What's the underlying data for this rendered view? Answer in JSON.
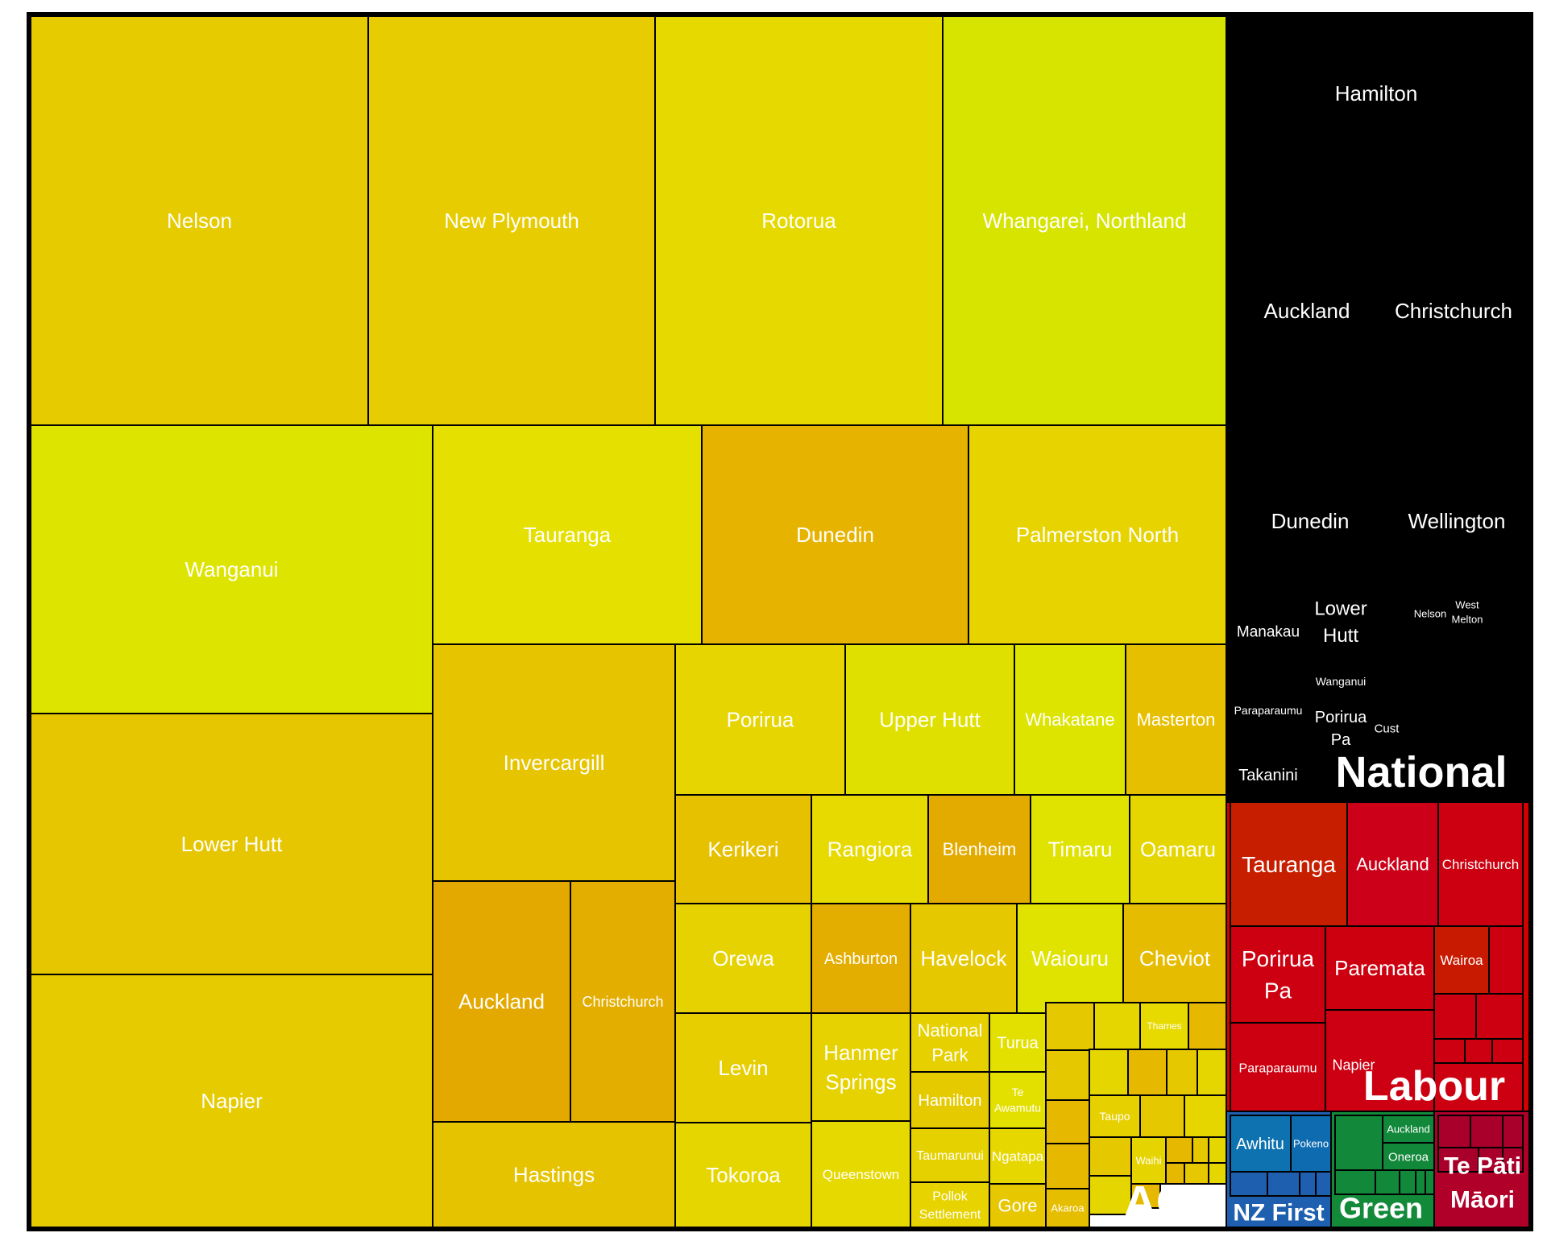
{
  "chart_data": {
    "type": "treemap",
    "groups": [
      {
        "name": "ACT",
        "color": "#f0d400",
        "items": [
          {
            "name": "Nelson",
            "color": "#e6cb00"
          },
          {
            "name": "New Plymouth",
            "color": "#e6cc00"
          },
          {
            "name": "Rotorua",
            "color": "#e6d900"
          },
          {
            "name": "Whangarei, Northland",
            "color": "#d6e400"
          },
          {
            "name": "Wanganui",
            "color": "#dde400"
          },
          {
            "name": "Lower Hutt",
            "color": "#e6c600"
          },
          {
            "name": "Napier",
            "color": "#e6cb00"
          },
          {
            "name": "Tauranga",
            "color": "#e6e000"
          },
          {
            "name": "Dunedin",
            "color": "#e6b400"
          },
          {
            "name": "Palmerston North",
            "color": "#e6d300"
          },
          {
            "name": "Invercargill",
            "color": "#e6c400"
          },
          {
            "name": "Auckland",
            "color": "#e3a900"
          },
          {
            "name": "Christchurch",
            "color": "#e3ae00"
          },
          {
            "name": "Hastings",
            "color": "#e6c300"
          },
          {
            "name": "Porirua",
            "color": "#e6d500"
          },
          {
            "name": "Upper Hutt",
            "color": "#e0e000"
          },
          {
            "name": "Whakatane",
            "color": "#dce400"
          },
          {
            "name": "Masterton",
            "color": "#e6c000"
          },
          {
            "name": "Kerikeri",
            "color": "#e6c100"
          },
          {
            "name": "Rangiora",
            "color": "#e6da00"
          },
          {
            "name": "Blenheim",
            "color": "#e3ab00"
          },
          {
            "name": "Timaru",
            "color": "#e0e200"
          },
          {
            "name": "Oamaru",
            "color": "#e6d600"
          },
          {
            "name": "Orewa",
            "color": "#e6d200"
          },
          {
            "name": "Ashburton",
            "color": "#e3ae00"
          },
          {
            "name": "Havelock",
            "color": "#e6c800"
          },
          {
            "name": "Waiouru",
            "color": "#e0e300"
          },
          {
            "name": "Cheviot",
            "color": "#e6bc00"
          },
          {
            "name": "Levin",
            "color": "#e6ce00"
          },
          {
            "name": "Hanmer Springs",
            "color": "#e6d200"
          },
          {
            "name": "National Park",
            "color": "#e6d000"
          },
          {
            "name": "Turua",
            "color": "#e3e000"
          },
          {
            "name": "Hamilton",
            "color": "#e6ca00"
          },
          {
            "name": "Te Awamutu",
            "color": "#e3e000"
          },
          {
            "name": "Tokoroa",
            "color": "#e6d600"
          },
          {
            "name": "Queenstown",
            "color": "#e6d900"
          },
          {
            "name": "Taumarunui",
            "color": "#e6d100"
          },
          {
            "name": "Ngatapa",
            "color": "#e6d700"
          },
          {
            "name": "Pollok Settlement",
            "color": "#e6d300"
          },
          {
            "name": "Gore",
            "color": "#e6c700"
          },
          {
            "name": "Akaroa",
            "color": "#e6be00"
          },
          {
            "name": "Thames",
            "color": "#e6da00"
          },
          {
            "name": "Taupo",
            "color": "#e6d000"
          },
          {
            "name": "Waihi",
            "color": "#e6d400"
          }
        ]
      },
      {
        "name": "National",
        "color": "#000000",
        "items": [
          {
            "name": "Hamilton"
          },
          {
            "name": "Auckland"
          },
          {
            "name": "Christchurch"
          },
          {
            "name": "Dunedin"
          },
          {
            "name": "Wellington"
          },
          {
            "name": "Manakau"
          },
          {
            "name": "Lower Hutt"
          },
          {
            "name": "Nelson"
          },
          {
            "name": "West Melton"
          },
          {
            "name": "Wanganui"
          },
          {
            "name": "Paraparaumu"
          },
          {
            "name": "Porirua Pa"
          },
          {
            "name": "Cust"
          },
          {
            "name": "Takanini"
          }
        ]
      },
      {
        "name": "Labour",
        "color": "#d40000",
        "items": [
          {
            "name": "Tauranga",
            "color": "#c81e00"
          },
          {
            "name": "Auckland",
            "color": "#cc0018"
          },
          {
            "name": "Christchurch",
            "color": "#cc0010"
          },
          {
            "name": "Porirua Pa",
            "color": "#cc0010"
          },
          {
            "name": "Paremata",
            "color": "#cc000e"
          },
          {
            "name": "Wairoa",
            "color": "#c81a00"
          },
          {
            "name": "Paraparaumu",
            "color": "#cc0010"
          },
          {
            "name": "Napier",
            "color": "#cc0012"
          }
        ]
      },
      {
        "name": "NZ First",
        "color": "#1f5fb0",
        "items": [
          {
            "name": "Awhitu",
            "color": "#0e72b0"
          },
          {
            "name": "Pokeno",
            "color": "#0e6bb0"
          }
        ]
      },
      {
        "name": "Green",
        "color": "#13893a",
        "items": [
          {
            "name": "Auckland",
            "color": "#12883a"
          },
          {
            "name": "Oneroa",
            "color": "#12883a"
          }
        ]
      },
      {
        "name": "Te Pāti Māori",
        "color": "#b0002a",
        "items": []
      }
    ]
  }
}
